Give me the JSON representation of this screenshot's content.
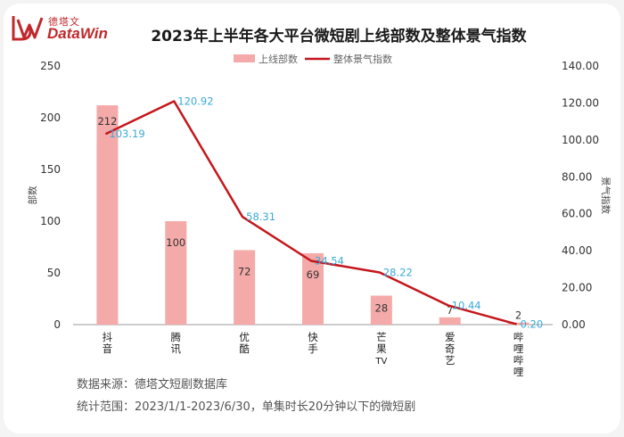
{
  "header": {
    "logo_cn": "德塔文",
    "logo_en": "DataWin",
    "title": "2023年上半年各大平台微短剧上线部数及整体景气指数"
  },
  "footer": {
    "source": "数据来源：德塔文短剧数据库",
    "scope": "统计范围：2023/1/1-2023/6/30，单集时长20分钟以下的微短剧"
  },
  "colors": {
    "bar": "#f4aaa9",
    "line": "#c4161c",
    "line_label": "#39a9d8",
    "brand": "#c0282b"
  },
  "chart_data": {
    "type": "bar",
    "categories": [
      "抖音",
      "腾讯",
      "优酷",
      "快手",
      "芒果TV",
      "爱奇艺",
      "哔哩哔哩"
    ],
    "series": [
      {
        "name": "上线部数",
        "type": "bar",
        "axis": "left",
        "values": [
          212,
          100,
          72,
          69,
          28,
          7,
          2
        ]
      },
      {
        "name": "整体景气指数",
        "type": "line",
        "axis": "right",
        "values": [
          103.19,
          120.92,
          58.31,
          34.54,
          28.22,
          10.44,
          0.2
        ]
      }
    ],
    "value_labels_line": [
      "103.19",
      "120.92",
      "58.31",
      "34.54",
      "28.22",
      "10.44",
      "0.20"
    ],
    "value_labels_bar": [
      "212",
      "100",
      "72",
      "69",
      "28",
      "7",
      "2"
    ],
    "ylabel": "部数",
    "y2label": "景气指数",
    "ylim": [
      0,
      250
    ],
    "y2lim": [
      0,
      140
    ],
    "yticks": [
      "0",
      "50",
      "100",
      "150",
      "200",
      "250"
    ],
    "y2ticks": [
      "0.00",
      "20.00",
      "40.00",
      "60.00",
      "80.00",
      "100.00",
      "120.00",
      "140.00"
    ],
    "legend_position": "top-center",
    "grid": false
  }
}
